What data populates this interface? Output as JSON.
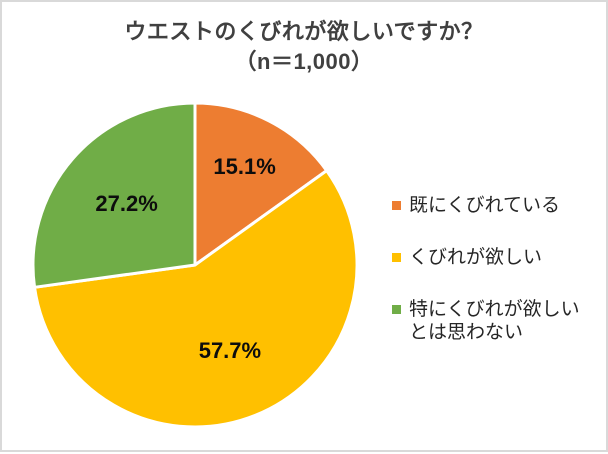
{
  "title": {
    "line1": "ウエストのくびれが欲しいですか？",
    "line2": "（n＝1,000）"
  },
  "chart_data": {
    "type": "pie",
    "title": "ウエストのくびれが欲しいですか？（n＝1,000）",
    "n": "1,000",
    "start_angle_deg": 0,
    "direction": "clockwise",
    "legend_position": "right",
    "title_color": "#404040",
    "data_label_color": "#0d0d0d",
    "slice_separator_color": "#ffffff",
    "slices": [
      {
        "label": "既にくびれている",
        "value": 15.1,
        "display": "15.1%",
        "color": "#ED7D31"
      },
      {
        "label": "くびれが欲しい",
        "value": 57.7,
        "display": "57.7%",
        "color": "#FFC000"
      },
      {
        "label": "特にくびれが欲しいとは思わない",
        "value": 27.2,
        "display": "27.2%",
        "color": "#70AD47"
      }
    ]
  },
  "frame": {
    "background": "#FFFFFF",
    "border_color": "#D9D9D9"
  }
}
